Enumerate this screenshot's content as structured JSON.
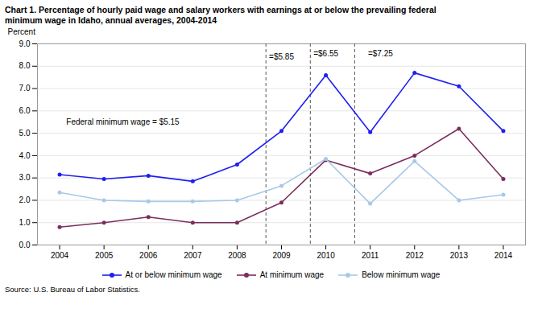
{
  "chart_data": {
    "type": "line",
    "title": [
      "Chart 1. Percentage of hourly paid wage and salary workers with earnings at or below the prevailing federal",
      "minimum wage in Idaho, annual averages, 2004-2014"
    ],
    "ylabel": "Percent",
    "source": "Source: U.S. Bureau of Labor Statistics.",
    "x": [
      2004,
      2005,
      2006,
      2007,
      2008,
      2009,
      2010,
      2011,
      2012,
      2013,
      2014
    ],
    "series": [
      {
        "name": "At or below minimum wage",
        "color": "#1F1FF0",
        "marker": "circle",
        "line_style": "solid",
        "values": [
          3.15,
          2.95,
          3.1,
          2.85,
          3.6,
          5.1,
          7.6,
          5.05,
          7.7,
          7.1,
          5.1
        ]
      },
      {
        "name": "At minimum wage",
        "color": "#7B2D5E",
        "marker": "circle",
        "line_style": "solid",
        "values": [
          0.8,
          1.0,
          1.25,
          1.0,
          1.0,
          1.9,
          3.8,
          3.2,
          4.0,
          5.2,
          2.95
        ]
      },
      {
        "name": "Below minimum wage",
        "color": "#A8C8E8",
        "marker": "circle",
        "line_style": "solid",
        "values": [
          2.35,
          2.0,
          1.95,
          1.95,
          2.0,
          2.65,
          3.85,
          1.85,
          3.75,
          2.0,
          2.25
        ]
      }
    ],
    "xlim": [
      2003.5,
      2014.5
    ],
    "xticks": [
      2004,
      2005,
      2006,
      2007,
      2008,
      2009,
      2010,
      2011,
      2012,
      2013,
      2014
    ],
    "ylim": [
      0.0,
      9.0
    ],
    "yticks": [
      {
        "value": 0,
        "label": "0.0"
      },
      {
        "value": 1,
        "label": "1.0"
      },
      {
        "value": 2,
        "label": "2.0"
      },
      {
        "value": 3,
        "label": "3.0"
      },
      {
        "value": 4,
        "label": "4.0"
      },
      {
        "value": 5,
        "label": "5.0"
      },
      {
        "value": 6,
        "label": "6.0"
      },
      {
        "value": 7,
        "label": "7.0"
      },
      {
        "value": 8,
        "label": "8.0"
      },
      {
        "value": 9,
        "label": "9.0"
      }
    ],
    "grid": "y",
    "legend": "bottom",
    "vlines": {
      "x": [
        2008.65,
        2009.65,
        2010.65
      ],
      "color": "#555555",
      "line_style": "dashed"
    },
    "annotations": [
      {
        "x": 2008.72,
        "y": 8.55,
        "text": "=$5.85"
      },
      {
        "x": 2009.72,
        "y": 8.7,
        "text": "=$6.55"
      },
      {
        "x": 2010.95,
        "y": 8.7,
        "text": "=$7.25"
      },
      {
        "x": 2004.15,
        "y": 5.65,
        "text": "Federal minimum wage = $5.15"
      }
    ]
  }
}
